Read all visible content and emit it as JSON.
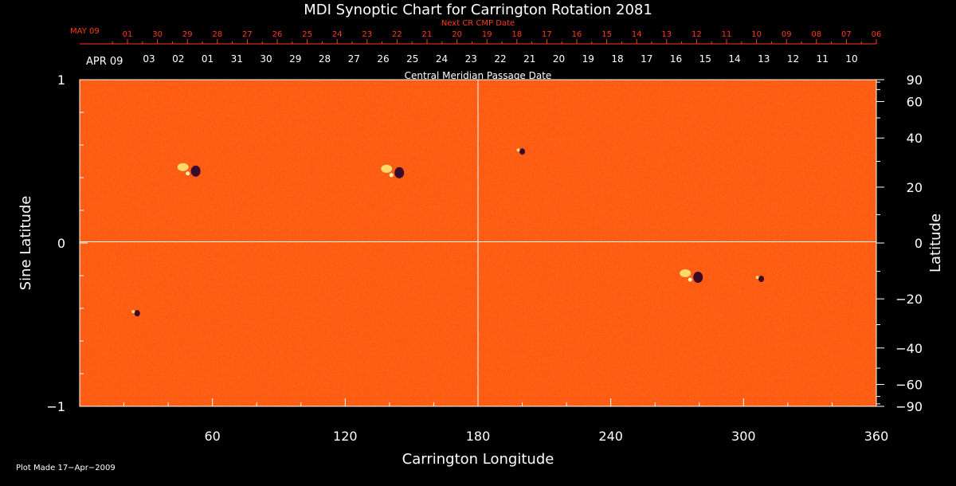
{
  "chart_data": {
    "type": "heatmap",
    "title": "MDI Synoptic Chart for Carrington Rotation 2081",
    "xlabel": "Carrington Longitude",
    "ylabel_left": "Sine Latitude",
    "ylabel_right": "Latitude",
    "xlim": [
      0,
      360
    ],
    "ylim": [
      -1,
      1
    ],
    "x_ticks": [
      60,
      120,
      180,
      240,
      300,
      360
    ],
    "y_ticks_left": [
      -1,
      0,
      1
    ],
    "y_ticks_left_labels": [
      "−1",
      "0",
      "1"
    ],
    "y_ticks_right": [
      -90,
      -60,
      -40,
      -20,
      0,
      20,
      40,
      60,
      90
    ],
    "y_ticks_right_labels": [
      "−90",
      "−60",
      "−40",
      "−20",
      "0",
      "20",
      "40",
      "60",
      "90"
    ],
    "top_axis_next": {
      "label": "Next CR CMP Date",
      "month_label": "MAY 09",
      "dates": [
        "01",
        "30",
        "29",
        "28",
        "27",
        "26",
        "25",
        "24",
        "23",
        "22",
        "21",
        "20",
        "19",
        "18",
        "17",
        "16",
        "15",
        "14",
        "13",
        "12",
        "11",
        "10",
        "09",
        "08",
        "07",
        "06"
      ],
      "color": "#ff3a1a"
    },
    "top_axis_current": {
      "label": "Central Meridian Passage Date",
      "month_label": "APR 09",
      "dates": [
        "03",
        "02",
        "01",
        "31",
        "30",
        "29",
        "28",
        "27",
        "26",
        "25",
        "24",
        "23",
        "22",
        "21",
        "20",
        "19",
        "18",
        "17",
        "16",
        "15",
        "14",
        "13",
        "12",
        "11",
        "10"
      ],
      "color": "#ffffff"
    },
    "grid_lines": {
      "longitude": 180,
      "sine_latitude": 0
    },
    "colors": {
      "background": "#000000",
      "field_base": "#ff5a10",
      "positive_polarity": "#ffe070",
      "negative_polarity": "#3a0a2a",
      "axis": "#ffffff"
    },
    "features": [
      {
        "type": "bipolar-region",
        "lon": 51,
        "sinlat": 0.45
      },
      {
        "type": "bipolar-region",
        "lon": 143,
        "sinlat": 0.44
      },
      {
        "type": "bipolar-region",
        "lon": 278,
        "sinlat": -0.2
      },
      {
        "type": "small-spot",
        "lon": 200,
        "sinlat": 0.56
      },
      {
        "type": "small-spot",
        "lon": 308,
        "sinlat": -0.22
      },
      {
        "type": "small-spot",
        "lon": 26,
        "sinlat": -0.43
      }
    ]
  },
  "footer": {
    "plot_made": "Plot Made 17−Apr−2009"
  }
}
